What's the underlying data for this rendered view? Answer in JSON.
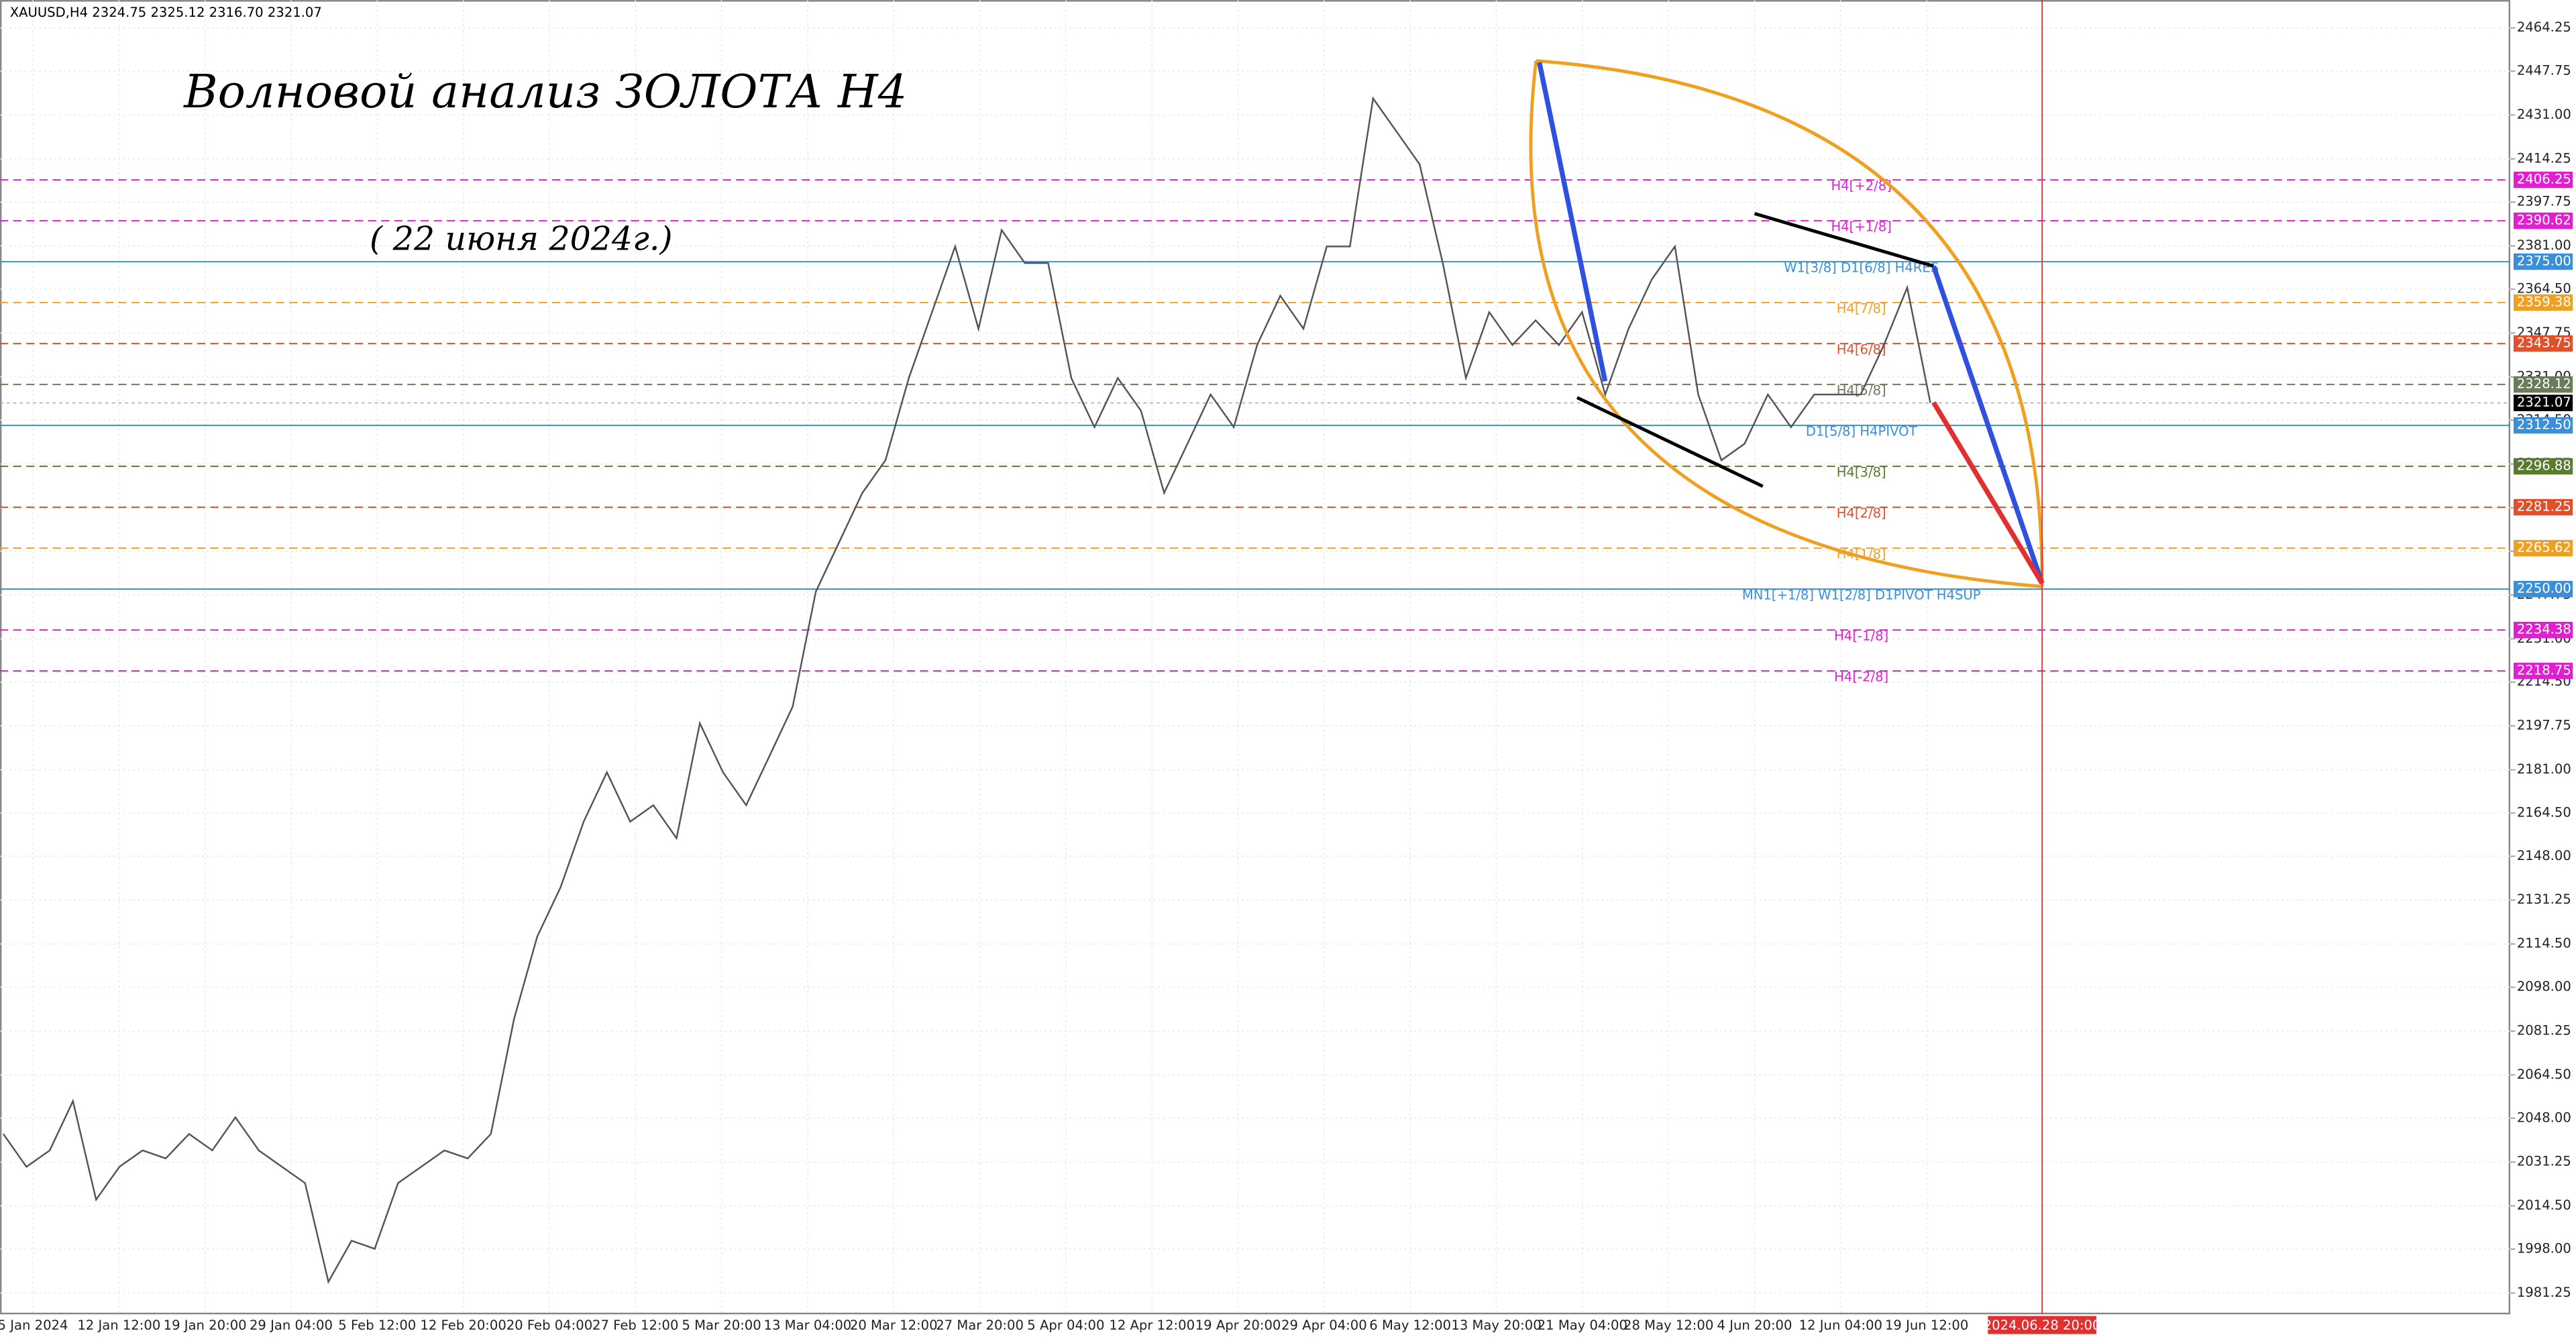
{
  "chart_data": {
    "type": "line",
    "header": "XAUUSD,H4  2324.75 2325.12 2316.70 2321.07",
    "title": "Волновой анализ ЗОЛОТА H4",
    "subtitle": "(  22 июня 2024г.)",
    "x_labels": [
      "5 Jan 2024",
      "12 Jan 12:00",
      "19 Jan 20:00",
      "29 Jan 04:00",
      "5 Feb 12:00",
      "12 Feb 20:00",
      "20 Feb 04:00",
      "27 Feb 12:00",
      "5 Mar 20:00",
      "13 Mar 04:00",
      "20 Mar 12:00",
      "27 Mar 20:00",
      "5 Apr 04:00",
      "12 Apr 12:00",
      "19 Apr 20:00",
      "29 Apr 04:00",
      "6 May 12:00",
      "13 May 20:00",
      "21 May 04:00",
      "28 May 12:00",
      "4 Jun 20:00",
      "12 Jun 04:00",
      "19 Jun 12:00"
    ],
    "future_label": "2024.06.28 20:00",
    "series": [
      {
        "name": "XAUUSD,H4",
        "color": "#555555",
        "values": [
          2042.0,
          2029.4,
          2035.7,
          2054.5,
          2016.9,
          2029.4,
          2035.7,
          2032.6,
          2042.0,
          2035.7,
          2048.3,
          2035.7,
          2029.4,
          2023.2,
          1985.5,
          2001.2,
          1998.1,
          2023.2,
          2029.4,
          2035.7,
          2032.6,
          2042.0,
          2085.9,
          2117.3,
          2136.1,
          2161.2,
          2180.0,
          2161.2,
          2167.5,
          2154.9,
          2198.8,
          2180.0,
          2167.5,
          2186.3,
          2205.1,
          2249.0,
          2267.9,
          2286.7,
          2299.2,
          2330.6,
          2355.7,
          2380.8,
          2349.4,
          2387.1,
          2374.5,
          2374.5,
          2330.6,
          2311.8,
          2330.6,
          2318.1,
          2286.7,
          2305.5,
          2324.3,
          2311.8,
          2343.2,
          2362.0,
          2349.4,
          2380.8,
          2380.8,
          2437.3,
          2424.7,
          2412.2,
          2374.5,
          2330.6,
          2355.7,
          2343.2,
          2352.6,
          2343.2,
          2355.7,
          2324.3,
          2349.4,
          2368.2,
          2380.8,
          2324.3,
          2299.2,
          2305.5,
          2324.3,
          2311.8,
          2324.3,
          2324.3,
          2324.3,
          2343.2,
          2365.1,
          2321.07
        ]
      }
    ],
    "ylim": [
      1973.1,
      2474.9
    ],
    "yticks": [
      2464.25,
      2447.75,
      {
        "value": 2431,
        "label": "2431.00"
      },
      2414.25,
      2397.75,
      {
        "value": 2381,
        "label": "2381.00"
      },
      {
        "value": 2364.5,
        "label": "2364.50"
      },
      2347.75,
      {
        "value": 2331,
        "label": "2331.00"
      },
      {
        "value": 2314.5,
        "label": "2314.50"
      },
      2297.75,
      {
        "value": 2281,
        "label": "2281.00"
      },
      {
        "value": 2264.5,
        "label": "2264.50"
      },
      2247.75,
      {
        "value": 2231,
        "label": "2231.00"
      },
      {
        "value": 2214.5,
        "label": "2214.50"
      },
      2197.75,
      {
        "value": 2181,
        "label": "2181.00"
      },
      {
        "value": 2164.5,
        "label": "2164.50"
      },
      {
        "value": 2148,
        "label": "2148.00"
      },
      2131.25,
      {
        "value": 2114.5,
        "label": "2114.50"
      },
      {
        "value": 2098,
        "label": "2098.00"
      },
      2081.25,
      {
        "value": 2064.5,
        "label": "2064.50"
      },
      {
        "value": 2048,
        "label": "2048.00"
      },
      2031.25,
      {
        "value": 2014.5,
        "label": "2014.50"
      },
      {
        "value": 1998,
        "label": "1998.00"
      },
      1981.25
    ],
    "grid": true,
    "levels": [
      {
        "name": "H4[+2/8]",
        "value": 2406.25,
        "label": "2406.25",
        "color": "#e020d0",
        "dashed": true
      },
      {
        "name": "H4[+1/8]",
        "value": 2390.62,
        "label": "2390.62",
        "color": "#e020d0",
        "dashed": true
      },
      {
        "name": "W1[3/8] D1[6/8] H4RES",
        "value": 2375,
        "label": "2375.00",
        "color": "#3a8fd8",
        "dashed": false
      },
      {
        "name": "H4[7/8]",
        "value": 2359.38,
        "label": "2359.38",
        "color": "#f0a020",
        "dashed": true
      },
      {
        "name": "H4[6/8]",
        "value": 2343.75,
        "label": "2343.75",
        "color": "#e0502a",
        "dashed": true
      },
      {
        "name": "H4[5/8]",
        "value": 2328.12,
        "label": "2328.12",
        "color": "#6b7a5a",
        "dashed": true
      },
      {
        "name": "D1[5/8] H4PIVOT",
        "value": 2312.5,
        "label": "2312.50",
        "color": "#3a8fd8",
        "dashed": false
      },
      {
        "name": "H4[3/8]",
        "value": 2296.88,
        "label": "2296.88",
        "color": "#5a7a30",
        "dashed": true
      },
      {
        "name": "H4[2/8]",
        "value": 2281.25,
        "label": "2281.25",
        "color": "#e0502a",
        "dashed": true
      },
      {
        "name": "H4[1/8]",
        "value": 2265.62,
        "label": "2265.62",
        "color": "#f0a020",
        "dashed": true
      },
      {
        "name": "MN1[+1/8] W1[2/8] D1PIVOT H4SUP",
        "value": 2250,
        "label": "2250.00",
        "color": "#3a8fd8",
        "dashed": false
      },
      {
        "name": "H4[-1/8]",
        "value": 2234.38,
        "label": "2234.38",
        "color": "#e020d0",
        "dashed": true
      },
      {
        "name": "H4[-2/8]",
        "value": 2218.75,
        "label": "2218.75",
        "color": "#e020d0",
        "dashed": true
      }
    ],
    "current_price": {
      "value": 2321.07,
      "label": "2321.07"
    }
  }
}
